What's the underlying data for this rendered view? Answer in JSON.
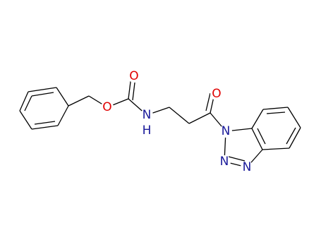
{
  "atoms": [
    "O",
    "O",
    "N",
    "H",
    "O",
    "N",
    "N",
    "N"
  ]
}
